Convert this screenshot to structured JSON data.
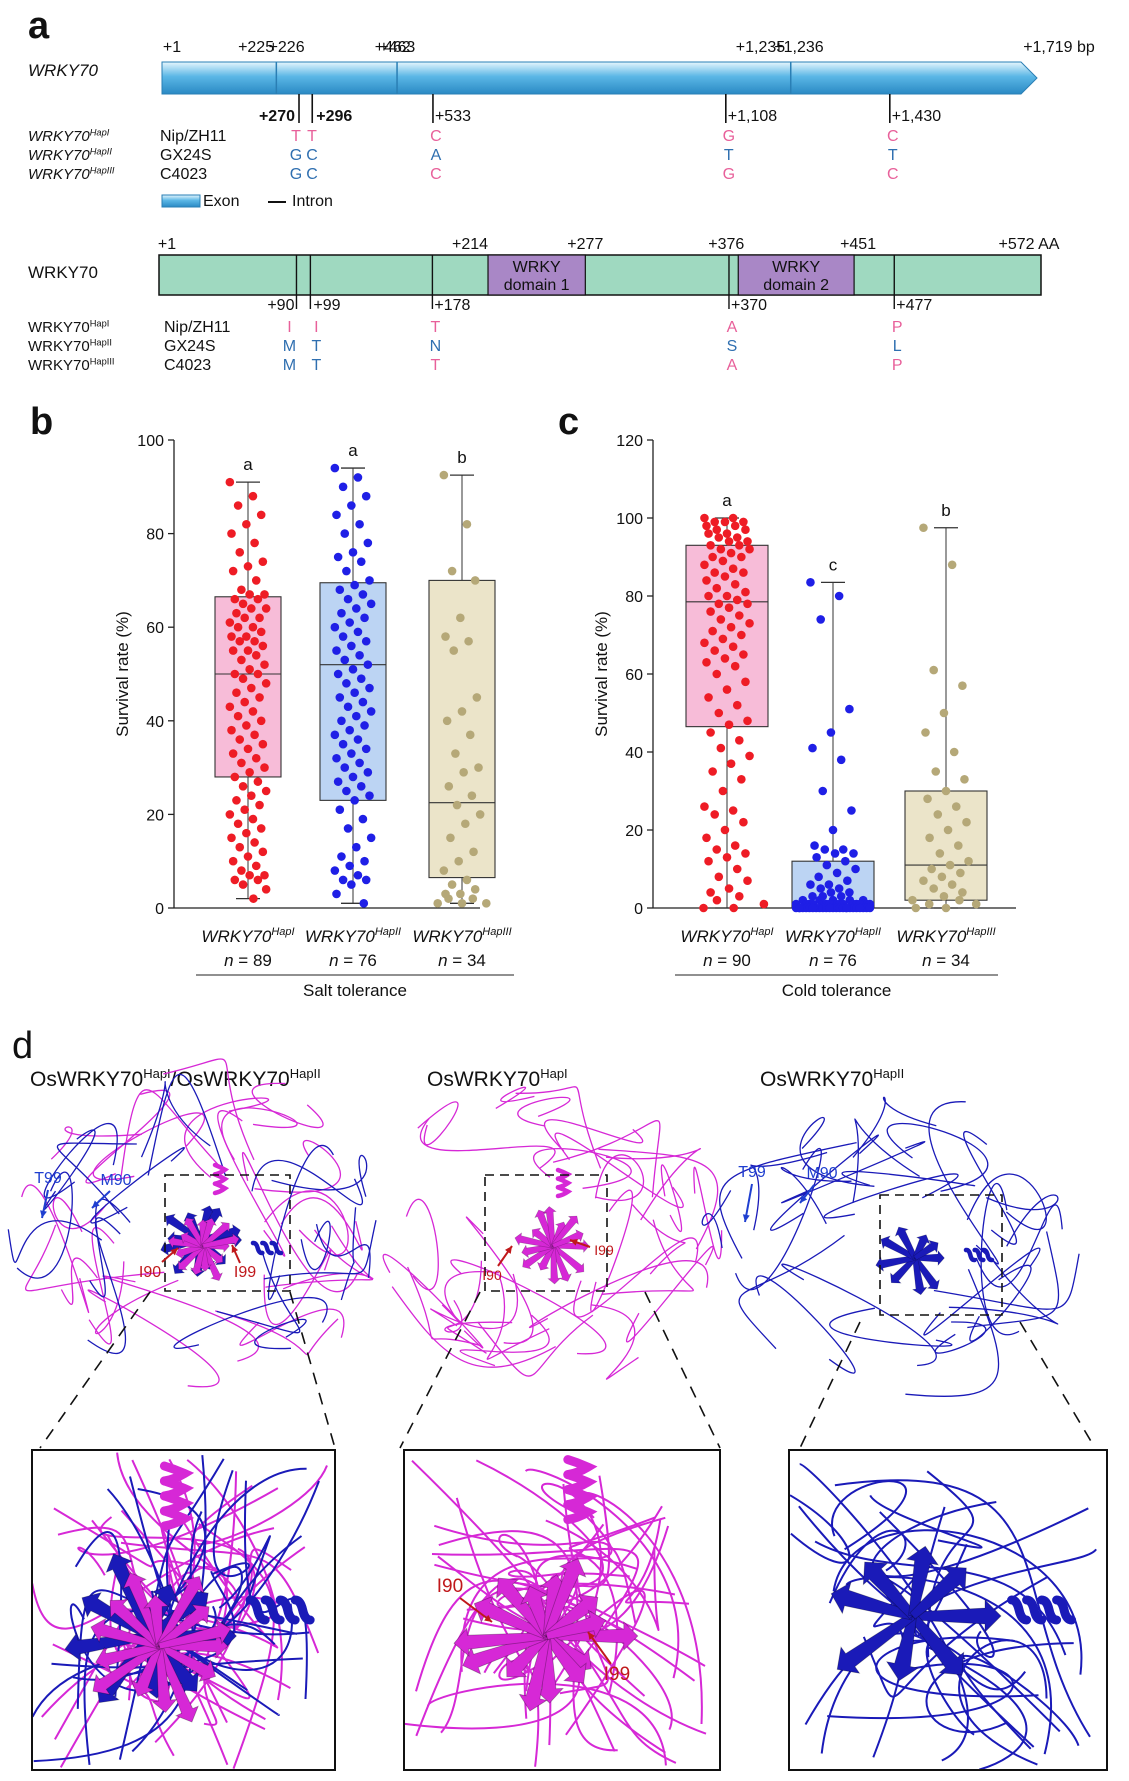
{
  "panel_a": {
    "letter": "a",
    "gene_label": "WRKY70",
    "positions": [
      "+1",
      "+225",
      "+226",
      "+462",
      "+463",
      "+1,235",
      "+1,236",
      "+1,719 bp"
    ],
    "snp_positions": [
      "+270",
      "+296",
      "+533",
      "+1,108",
      "+1,430"
    ],
    "haplotypes": [
      {
        "name": "WRKY70",
        "sup": "HapI",
        "line": "Nip/ZH11",
        "bases": [
          "T",
          "T",
          "C",
          "G",
          "C"
        ],
        "colors": [
          "#e8609a",
          "#e8609a",
          "#e8609a",
          "#e8609a",
          "#e8609a"
        ]
      },
      {
        "name": "WRKY70",
        "sup": "HapII",
        "line": "GX24S",
        "bases": [
          "G",
          "C",
          "A",
          "T",
          "T"
        ],
        "colors": [
          "#2f6fb0",
          "#2f6fb0",
          "#2f6fb0",
          "#2f6fb0",
          "#2f6fb0"
        ]
      },
      {
        "name": "WRKY70",
        "sup": "HapIII",
        "line": "C4023",
        "bases": [
          "G",
          "C",
          "C",
          "G",
          "C"
        ],
        "colors": [
          "#2f6fb0",
          "#2f6fb0",
          "#e8609a",
          "#e8609a",
          "#e8609a"
        ]
      }
    ],
    "legend_exon": "Exon",
    "legend_intron": "Intron",
    "protein_label": "WRKY70",
    "protein_positions": [
      "+1",
      "+214",
      "+277",
      "+376",
      "+451",
      "+572 AA"
    ],
    "domain1": [
      "WRKY",
      "domain 1"
    ],
    "domain2": [
      "WRKY",
      "domain 2"
    ],
    "aa_positions": [
      "+90",
      "+99",
      "+178",
      "+370",
      "+477"
    ],
    "aa_haplotypes": [
      {
        "name": "WRKY70",
        "sup": "HapI",
        "line": "Nip/ZH11",
        "aas": [
          "I",
          "I",
          "T",
          "A",
          "P"
        ],
        "colors": [
          "#e8609a",
          "#e8609a",
          "#e8609a",
          "#e8609a",
          "#e8609a"
        ]
      },
      {
        "name": "WRKY70",
        "sup": "HapII",
        "line": "GX24S",
        "aas": [
          "M",
          "T",
          "N",
          "S",
          "L"
        ],
        "colors": [
          "#2f6fb0",
          "#2f6fb0",
          "#2f6fb0",
          "#2f6fb0",
          "#2f6fb0"
        ]
      },
      {
        "name": "WRKY70",
        "sup": "HapIII",
        "line": "C4023",
        "aas": [
          "M",
          "T",
          "T",
          "A",
          "P"
        ],
        "colors": [
          "#2f6fb0",
          "#2f6fb0",
          "#e8609a",
          "#e8609a",
          "#e8609a"
        ]
      }
    ],
    "exon_color": "#5bb7e6",
    "protein_color": "#9fd9c0",
    "domain_color": "#a987c6"
  },
  "chart_data": [
    {
      "type": "box",
      "letter": "b",
      "ylabel": "Survival rate (%)",
      "ylim": [
        0,
        100
      ],
      "yticks": [
        0,
        20,
        40,
        60,
        80,
        100
      ],
      "group_label": "Salt tolerance",
      "groups": [
        {
          "name": "WRKY70",
          "sup": "HapI",
          "n": "n = 89",
          "letter": "a",
          "min": 2,
          "q1": 28,
          "median": 50,
          "q3": 66.5,
          "max": 91,
          "color": "#ee1c25",
          "fill": "#f7bcd8",
          "points": [
            91,
            88,
            86,
            84,
            82,
            80,
            78,
            76,
            74,
            73,
            72,
            70,
            68,
            67,
            67,
            66,
            66,
            65,
            64,
            64,
            63,
            62,
            62,
            61,
            60,
            60,
            59,
            58,
            58,
            57,
            57,
            56,
            55,
            55,
            54,
            53,
            52,
            51,
            50,
            50,
            49,
            48,
            47,
            46,
            45,
            44,
            43,
            42,
            41,
            40,
            39,
            38,
            37,
            36,
            35,
            34,
            33,
            32,
            31,
            30,
            29,
            28,
            27,
            26,
            25,
            24,
            23,
            22,
            21,
            20,
            19,
            18,
            17,
            16,
            15,
            14,
            13,
            12,
            11,
            10,
            9,
            8,
            7,
            7,
            6,
            6,
            5,
            4,
            2
          ]
        },
        {
          "name": "WRKY70",
          "sup": "HapII",
          "n": "n = 76",
          "letter": "a",
          "min": 1,
          "q1": 23,
          "median": 52,
          "q3": 69.5,
          "max": 94,
          "color": "#1f1fe6",
          "fill": "#bcd4f3",
          "points": [
            94,
            92,
            90,
            88,
            86,
            84,
            82,
            80,
            78,
            76,
            75,
            74,
            72,
            70,
            69,
            68,
            67,
            66,
            65,
            64,
            63,
            62,
            61,
            60,
            59,
            58,
            57,
            56,
            55,
            54,
            53,
            52,
            51,
            50,
            49,
            48,
            47,
            46,
            45,
            44,
            43,
            42,
            41,
            40,
            39,
            38,
            37,
            36,
            35,
            34,
            33,
            32,
            31,
            30,
            29,
            28,
            27,
            26,
            25,
            24,
            23,
            21,
            19,
            17,
            15,
            13,
            11,
            10,
            9,
            8,
            7,
            6,
            6,
            5,
            3,
            1
          ]
        },
        {
          "name": "WRKY70",
          "sup": "HapIII",
          "n": "n = 34",
          "letter": "b",
          "min": 1,
          "q1": 6.5,
          "median": 22.5,
          "q3": 70,
          "max": 92.5,
          "color": "#b5a878",
          "fill": "#ebe4c9",
          "points": [
            92.5,
            82,
            72,
            70,
            62,
            58,
            57,
            55,
            45,
            42,
            40,
            37,
            33,
            30,
            29,
            26,
            24,
            22,
            20,
            18,
            15,
            12,
            10,
            8,
            6,
            5,
            4,
            3,
            3,
            2,
            2,
            1,
            1,
            1
          ]
        }
      ]
    },
    {
      "type": "box",
      "letter": "c",
      "ylabel": "Survival rate (%)",
      "ylim": [
        0,
        120
      ],
      "yticks": [
        0,
        20,
        40,
        60,
        80,
        100,
        120
      ],
      "group_label": "Cold tolerance",
      "groups": [
        {
          "name": "WRKY70",
          "sup": "HapI",
          "n": "n = 90",
          "letter": "a",
          "min": 0,
          "q1": 46.5,
          "median": 78.5,
          "q3": 93,
          "max": 100,
          "color": "#ee1c25",
          "fill": "#f7bcd8",
          "points": [
            100,
            100,
            99,
            99,
            99,
            98,
            98,
            97,
            97,
            96,
            96,
            95,
            95,
            94,
            94,
            93,
            93,
            92,
            92,
            91,
            90,
            90,
            89,
            88,
            87,
            86,
            86,
            85,
            84,
            83,
            82,
            81,
            80,
            80,
            79,
            78,
            78,
            77,
            76,
            75,
            74,
            73,
            72,
            71,
            70,
            69,
            68,
            67,
            66,
            65,
            64,
            63,
            62,
            60,
            58,
            56,
            54,
            52,
            50,
            48,
            47,
            45,
            43,
            41,
            39,
            37,
            35,
            33,
            30,
            26,
            25,
            24,
            22,
            20,
            18,
            16,
            15,
            14,
            13,
            12,
            10,
            8,
            7,
            5,
            4,
            3,
            2,
            1,
            0,
            0
          ]
        },
        {
          "name": "WRKY70",
          "sup": "HapII",
          "n": "n = 76",
          "letter": "c",
          "min": 0,
          "q1": 0,
          "median": 0.5,
          "q3": 12,
          "max": 83.5,
          "color": "#1f1fe6",
          "fill": "#bcd4f3",
          "points": [
            83.5,
            80,
            74,
            51,
            45,
            41,
            38,
            30,
            25,
            20,
            16,
            15,
            15,
            14,
            14,
            13,
            12,
            11,
            10,
            9,
            8,
            7,
            6,
            6,
            5,
            5,
            4,
            4,
            3,
            3,
            3,
            2,
            2,
            2,
            2,
            2,
            1,
            1,
            1,
            1,
            1,
            1,
            1,
            1,
            1,
            1,
            1,
            1,
            1,
            1,
            1,
            0,
            0,
            0,
            0,
            0,
            0,
            0,
            0,
            0,
            0,
            0,
            0,
            0,
            0,
            0,
            0,
            0,
            0,
            0,
            0,
            0,
            0,
            0,
            0,
            0
          ]
        },
        {
          "name": "WRKY70",
          "sup": "HapIII",
          "n": "n = 34",
          "letter": "b",
          "min": 0,
          "q1": 2,
          "median": 11,
          "q3": 30,
          "max": 97.5,
          "color": "#b5a878",
          "fill": "#ebe4c9",
          "points": [
            97.5,
            88,
            61,
            57,
            50,
            45,
            40,
            35,
            33,
            30,
            28,
            26,
            24,
            22,
            20,
            18,
            16,
            14,
            12,
            11,
            10,
            9,
            8,
            7,
            6,
            5,
            4,
            3,
            2,
            2,
            1,
            1,
            0,
            0
          ]
        }
      ]
    }
  ],
  "panel_d": {
    "letter": "d",
    "titles": [
      {
        "parts": [
          {
            "t": "OsWRKY70"
          },
          {
            "t": "HapI",
            "sup": true
          },
          {
            "t": "/OsWRKY70"
          },
          {
            "t": "HapII",
            "sup": true
          }
        ]
      },
      {
        "parts": [
          {
            "t": "OsWRKY70"
          },
          {
            "t": "HapI",
            "sup": true
          }
        ]
      },
      {
        "parts": [
          {
            "t": "OsWRKY70"
          },
          {
            "t": "HapII",
            "sup": true
          }
        ]
      }
    ],
    "labels": {
      "t99": "T99",
      "m90": "M90",
      "i90": "I90",
      "i99": "I99"
    },
    "colors": {
      "hapI": "#d628d6",
      "hapII": "#1a1ab8",
      "mut_label": "#c0181b",
      "blue_label": "#1f3fd0"
    }
  }
}
